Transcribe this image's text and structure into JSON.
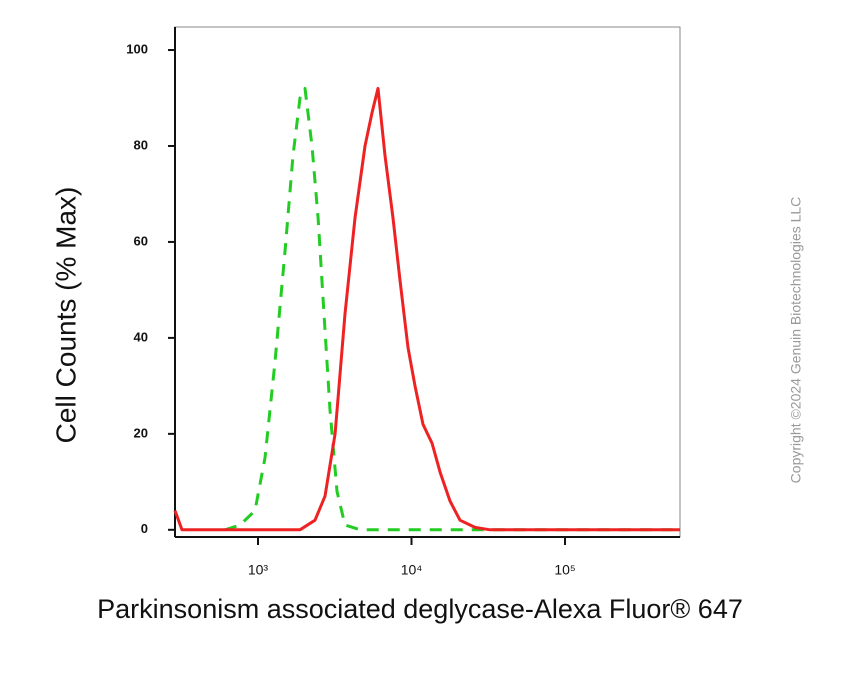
{
  "chart_data": {
    "type": "line",
    "y_label": "Cell Counts (% Max)",
    "x_label": "Parkinsonism associated deglycase-Alexa Fluor® 647",
    "watermark": "Copyright ©2024 Genuin Biotechnologies LLC",
    "xscale": "log",
    "xlim": [
      288,
      561000
    ],
    "xticks": [
      {
        "value": 1000,
        "label": "10³"
      },
      {
        "value": 10000,
        "label": "10⁴"
      },
      {
        "value": 100000,
        "label": "10⁵"
      }
    ],
    "ylim": [
      -1.5,
      104.8
    ],
    "yticks": [
      0,
      20,
      40,
      60,
      80,
      100
    ],
    "series": [
      {
        "color": "#22cc22",
        "dash": true,
        "x": [
          610,
          764,
          956,
          1111,
          1291,
          1500,
          1690,
          1878,
          2024,
          2248,
          2462,
          2693,
          2946,
          3273,
          3690,
          4616,
          17820,
          561000
        ],
        "values": [
          0,
          1,
          4,
          15,
          35,
          58,
          78,
          90,
          92,
          80,
          65,
          45,
          25,
          8,
          1,
          0,
          0,
          0
        ]
      },
      {
        "color": "#ee2222",
        "dash": false,
        "x": [
          288,
          320,
          1878,
          2350,
          2733,
          3178,
          3690,
          4285,
          4977,
          5535,
          6053,
          6718,
          7580,
          8415,
          9485,
          10540,
          11890,
          13610,
          15350,
          17820,
          20700,
          25900,
          32460,
          561000
        ],
        "values": [
          4,
          0,
          0,
          2,
          7,
          20,
          45,
          65,
          80,
          87,
          92,
          78,
          65,
          52,
          38,
          30,
          22,
          18,
          12,
          6,
          2,
          0.5,
          0,
          0
        ]
      }
    ]
  }
}
